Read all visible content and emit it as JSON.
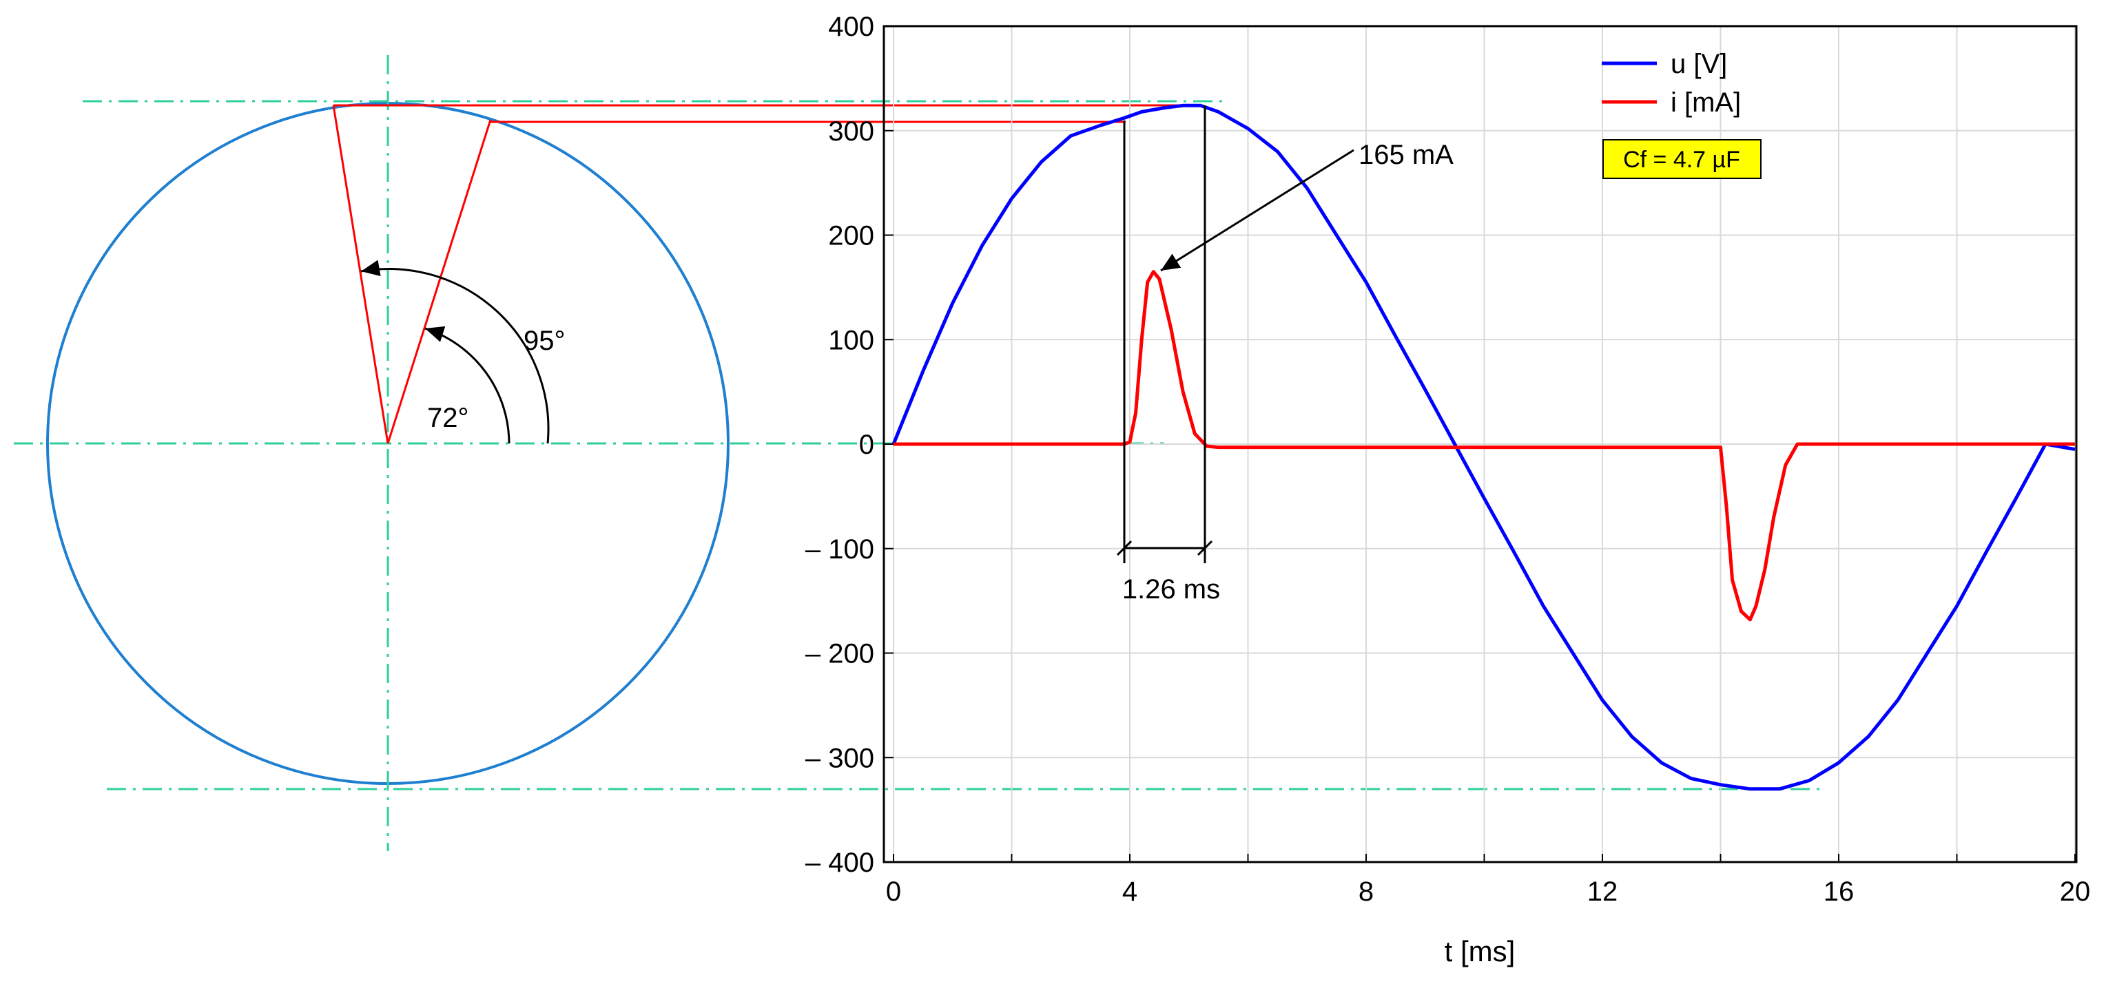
{
  "chart_data": {
    "type": "line",
    "title": "",
    "xlabel": "t [ms]",
    "ylabel": "",
    "xlim": [
      0,
      20
    ],
    "ylim": [
      -400,
      400
    ],
    "grid": true,
    "legend_position": "top-right",
    "x_ticks": [
      {
        "value": 0,
        "label": "0"
      },
      {
        "value": 4,
        "label": "4"
      },
      {
        "value": 8,
        "label": "8"
      },
      {
        "value": 12,
        "label": "12"
      },
      {
        "value": 16,
        "label": "16"
      },
      {
        "value": 20,
        "label": "20"
      }
    ],
    "y_ticks": [
      {
        "value": 400,
        "label": "400"
      },
      {
        "value": 300,
        "label": "300"
      },
      {
        "value": 200,
        "label": "200"
      },
      {
        "value": 100,
        "label": "100"
      },
      {
        "value": 0,
        "label": "0"
      },
      {
        "value": -100,
        "label": "– 100"
      },
      {
        "value": -200,
        "label": "– 200"
      },
      {
        "value": -300,
        "label": "– 300"
      },
      {
        "value": -400,
        "label": "– 400"
      }
    ],
    "series": [
      {
        "name": "u [V]",
        "color": "#0000ff",
        "x": [
          0,
          0.5,
          1,
          1.5,
          2,
          2.5,
          3,
          3.5,
          3.9,
          4.2,
          4.6,
          4.9,
          5.2,
          5.5,
          6,
          6.5,
          7,
          7.5,
          8,
          8.5,
          9,
          9.5,
          10,
          10.5,
          11,
          11.5,
          12,
          12.5,
          13,
          13.5,
          14,
          14.5,
          15,
          15.5,
          16,
          16.5,
          17,
          17.5,
          18,
          18.5,
          19,
          19.5,
          20
        ],
        "values": [
          0,
          70,
          135,
          190,
          235,
          270,
          295,
          305,
          312,
          318,
          322,
          324,
          324,
          318,
          302,
          280,
          245,
          200,
          155,
          103,
          52,
          0,
          -52,
          -103,
          -155,
          -200,
          -245,
          -280,
          -305,
          -320,
          -326,
          -330,
          -330,
          -322,
          -305,
          -280,
          -245,
          -200,
          -155,
          -103,
          -52,
          0,
          -5
        ]
      },
      {
        "name": "i [mA]",
        "color": "#ff0000",
        "x": [
          0,
          1,
          2,
          3,
          3.6,
          3.9,
          4.0,
          4.1,
          4.2,
          4.3,
          4.4,
          4.5,
          4.7,
          4.9,
          5.1,
          5.3,
          5.5,
          6,
          7,
          8,
          9,
          10,
          11,
          12,
          13,
          14.0,
          14.1,
          14.2,
          14.35,
          14.5,
          14.6,
          14.75,
          14.9,
          15.1,
          15.3,
          15.5,
          16,
          17,
          18,
          19,
          20
        ],
        "values": [
          0,
          0,
          0,
          0,
          0,
          0,
          2,
          30,
          100,
          155,
          165,
          158,
          110,
          50,
          10,
          -2,
          -3,
          -3,
          -3,
          -3,
          -3,
          -3,
          -3,
          -3,
          -3,
          -3,
          -60,
          -130,
          -160,
          -168,
          -155,
          -120,
          -70,
          -20,
          0,
          0,
          0,
          0,
          0,
          0,
          0
        ]
      }
    ],
    "annotations": {
      "peak_current": "165 mA",
      "conduction_time": "1.26 ms",
      "capacitor": "Cf = 4.7 µF",
      "angle_small": "72°",
      "angle_large": "95°"
    }
  }
}
